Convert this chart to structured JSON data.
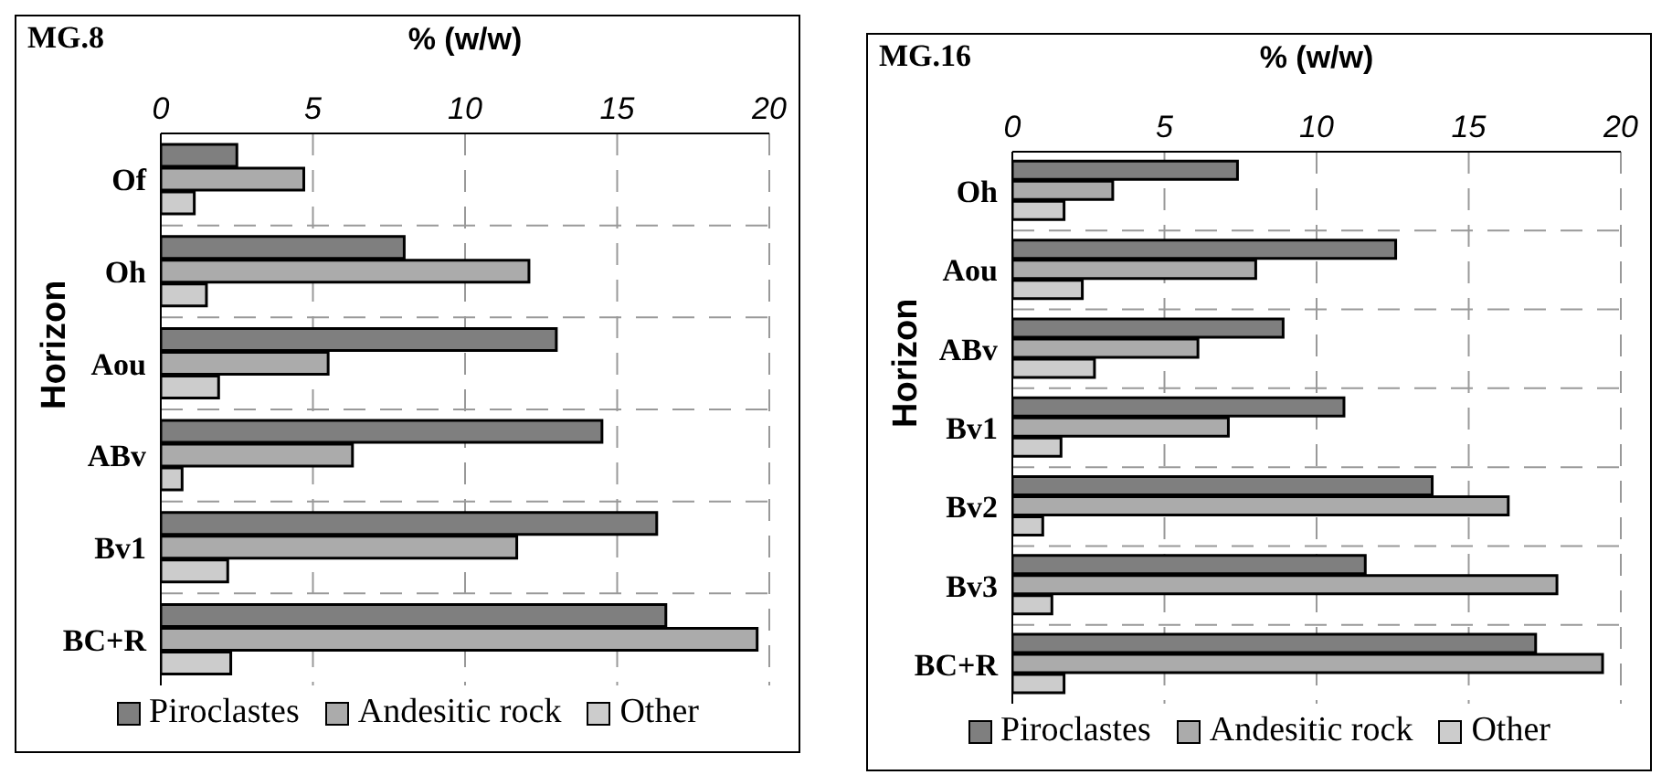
{
  "chart_data": [
    {
      "type": "bar",
      "orientation": "horizontal",
      "title": "MG.8",
      "xlabel": "% (w/w)",
      "ylabel": "Horizon",
      "categories": [
        "Of",
        "Oh",
        "Aou",
        "ABv",
        "Bv1",
        "BC+R"
      ],
      "series": [
        {
          "name": "Piroclastes",
          "color": "#7f7f7f",
          "values": [
            2.5,
            8.0,
            13.0,
            14.5,
            16.3,
            16.6
          ]
        },
        {
          "name": "Andesitic rock",
          "color": "#ababab",
          "values": [
            4.7,
            12.1,
            5.5,
            6.3,
            11.7,
            19.6
          ]
        },
        {
          "name": "Other",
          "color": "#cccccc",
          "values": [
            1.1,
            1.5,
            1.9,
            0.7,
            2.2,
            2.3
          ]
        }
      ],
      "xlim": [
        0,
        20
      ],
      "xticks": [
        0,
        5,
        10,
        15,
        20
      ],
      "grid": true,
      "legend": "bottom"
    },
    {
      "type": "bar",
      "orientation": "horizontal",
      "title": "MG.16",
      "xlabel": "% (w/w)",
      "ylabel": "Horizon",
      "categories": [
        "Oh",
        "Aou",
        "ABv",
        "Bv1",
        "Bv2",
        "Bv3",
        "BC+R"
      ],
      "series": [
        {
          "name": "Piroclastes",
          "color": "#7f7f7f",
          "values": [
            7.4,
            12.6,
            8.9,
            10.9,
            13.8,
            11.6,
            17.2
          ]
        },
        {
          "name": "Andesitic rock",
          "color": "#ababab",
          "values": [
            3.3,
            8.0,
            6.1,
            7.1,
            16.3,
            17.9,
            19.4
          ]
        },
        {
          "name": "Other",
          "color": "#cccccc",
          "values": [
            1.7,
            2.3,
            2.7,
            1.6,
            1.0,
            1.3,
            1.7
          ]
        }
      ],
      "xlim": [
        0,
        20
      ],
      "xticks": [
        0,
        5,
        10,
        15,
        20
      ],
      "grid": true,
      "legend": "bottom"
    }
  ]
}
